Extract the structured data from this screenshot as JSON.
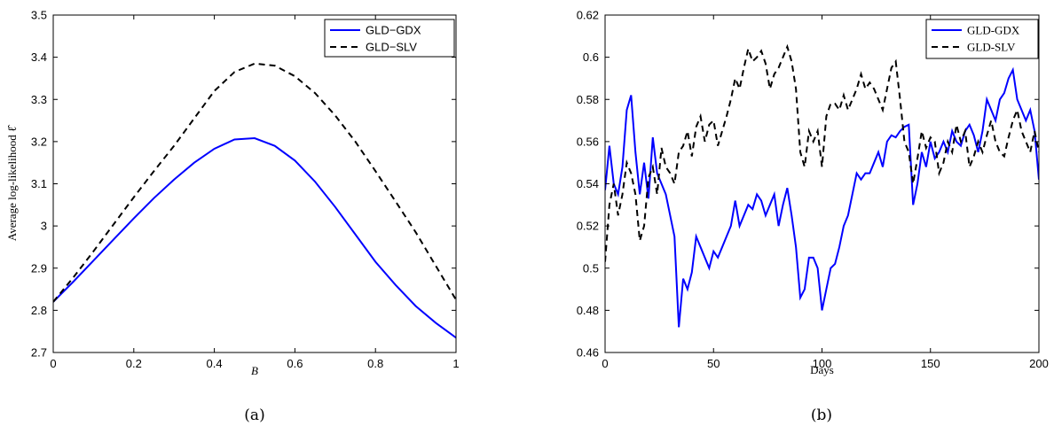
{
  "chart_data": [
    {
      "type": "line",
      "panel_label": "(a)",
      "xlabel": "B",
      "ylabel": "Average log-likelihood ℓ̂",
      "xlim": [
        0,
        1
      ],
      "ylim": [
        2.7,
        3.5
      ],
      "xticks": [
        "0",
        "0.2",
        "0.4",
        "0.6",
        "0.8",
        "1"
      ],
      "yticks": [
        "2.7",
        "2.8",
        "2.9",
        "3",
        "3.1",
        "3.2",
        "3.3",
        "3.4",
        "3.5"
      ],
      "legend_position": "top-right",
      "colors": {
        "GLD-GDX": "#0000ff",
        "GLD-SLV": "#000000"
      },
      "x": [
        0,
        0.05,
        0.1,
        0.15,
        0.2,
        0.25,
        0.3,
        0.35,
        0.4,
        0.45,
        0.5,
        0.55,
        0.6,
        0.65,
        0.7,
        0.75,
        0.8,
        0.85,
        0.9,
        0.95,
        1.0
      ],
      "series": [
        {
          "name": "GLD−GDX",
          "style": "solid",
          "values": [
            2.82,
            2.868,
            2.918,
            2.968,
            3.018,
            3.066,
            3.11,
            3.15,
            3.183,
            3.205,
            3.208,
            3.19,
            3.155,
            3.105,
            3.045,
            2.98,
            2.915,
            2.86,
            2.81,
            2.77,
            2.735
          ]
        },
        {
          "name": "GLD−SLV",
          "style": "dashed",
          "values": [
            2.82,
            2.878,
            2.94,
            3.004,
            3.068,
            3.13,
            3.19,
            3.255,
            3.32,
            3.365,
            3.385,
            3.38,
            3.355,
            3.315,
            3.262,
            3.2,
            3.13,
            3.058,
            2.985,
            2.905,
            2.825
          ]
        }
      ]
    },
    {
      "type": "line",
      "panel_label": "(b)",
      "xlabel": "Days",
      "ylabel": "",
      "xlim": [
        0,
        200
      ],
      "ylim": [
        0.46,
        0.62
      ],
      "xticks": [
        "0",
        "50",
        "100",
        "150",
        "200"
      ],
      "yticks": [
        "0.46",
        "0.48",
        "0.5",
        "0.52",
        "0.54",
        "0.56",
        "0.58",
        "0.6",
        "0.62"
      ],
      "legend_position": "top-right",
      "colors": {
        "GLD-GDX": "#0000ff",
        "GLD-SLV": "#000000"
      },
      "x": [
        0,
        2,
        4,
        6,
        8,
        10,
        12,
        14,
        16,
        18,
        20,
        22,
        24,
        26,
        28,
        30,
        32,
        34,
        36,
        38,
        40,
        42,
        44,
        46,
        48,
        50,
        52,
        54,
        56,
        58,
        60,
        62,
        64,
        66,
        68,
        70,
        72,
        74,
        76,
        78,
        80,
        82,
        84,
        86,
        88,
        90,
        92,
        94,
        96,
        98,
        100,
        102,
        104,
        106,
        108,
        110,
        112,
        114,
        116,
        118,
        120,
        122,
        124,
        126,
        128,
        130,
        132,
        134,
        136,
        138,
        140,
        142,
        144,
        146,
        148,
        150,
        152,
        154,
        156,
        158,
        160,
        162,
        164,
        166,
        168,
        170,
        172,
        174,
        176,
        178,
        180,
        182,
        184,
        186,
        188,
        190,
        192,
        194,
        196,
        198,
        200
      ],
      "series": [
        {
          "name": "GLD-GDX",
          "style": "solid",
          "values": [
            0.537,
            0.558,
            0.54,
            0.535,
            0.548,
            0.575,
            0.582,
            0.555,
            0.535,
            0.55,
            0.533,
            0.562,
            0.545,
            0.54,
            0.535,
            0.525,
            0.515,
            0.472,
            0.495,
            0.49,
            0.498,
            0.515,
            0.51,
            0.505,
            0.5,
            0.508,
            0.505,
            0.51,
            0.515,
            0.52,
            0.532,
            0.52,
            0.525,
            0.53,
            0.528,
            0.535,
            0.532,
            0.525,
            0.53,
            0.535,
            0.52,
            0.53,
            0.538,
            0.525,
            0.51,
            0.486,
            0.49,
            0.505,
            0.505,
            0.5,
            0.48,
            0.49,
            0.5,
            0.502,
            0.51,
            0.52,
            0.525,
            0.535,
            0.545,
            0.542,
            0.545,
            0.545,
            0.55,
            0.555,
            0.548,
            0.56,
            0.563,
            0.562,
            0.565,
            0.567,
            0.568,
            0.53,
            0.54,
            0.555,
            0.548,
            0.56,
            0.552,
            0.555,
            0.56,
            0.555,
            0.565,
            0.56,
            0.558,
            0.565,
            0.568,
            0.563,
            0.555,
            0.565,
            0.58,
            0.575,
            0.57,
            0.58,
            0.583,
            0.59,
            0.594,
            0.58,
            0.575,
            0.57,
            0.575,
            0.565,
            0.542
          ]
        },
        {
          "name": "GLD-SLV",
          "style": "dashed",
          "values": [
            0.503,
            0.53,
            0.54,
            0.525,
            0.535,
            0.55,
            0.545,
            0.535,
            0.513,
            0.52,
            0.543,
            0.548,
            0.535,
            0.557,
            0.548,
            0.545,
            0.54,
            0.555,
            0.558,
            0.565,
            0.553,
            0.567,
            0.572,
            0.56,
            0.568,
            0.57,
            0.558,
            0.565,
            0.572,
            0.58,
            0.59,
            0.585,
            0.595,
            0.604,
            0.598,
            0.6,
            0.603,
            0.597,
            0.585,
            0.592,
            0.595,
            0.6,
            0.605,
            0.598,
            0.585,
            0.555,
            0.548,
            0.565,
            0.56,
            0.565,
            0.548,
            0.572,
            0.578,
            0.578,
            0.575,
            0.582,
            0.575,
            0.58,
            0.585,
            0.592,
            0.585,
            0.588,
            0.585,
            0.58,
            0.575,
            0.585,
            0.595,
            0.598,
            0.58,
            0.56,
            0.555,
            0.54,
            0.552,
            0.565,
            0.557,
            0.562,
            0.56,
            0.545,
            0.55,
            0.56,
            0.555,
            0.568,
            0.56,
            0.565,
            0.548,
            0.553,
            0.56,
            0.555,
            0.563,
            0.57,
            0.56,
            0.555,
            0.553,
            0.562,
            0.57,
            0.575,
            0.565,
            0.56,
            0.555,
            0.565,
            0.555
          ]
        }
      ]
    }
  ]
}
